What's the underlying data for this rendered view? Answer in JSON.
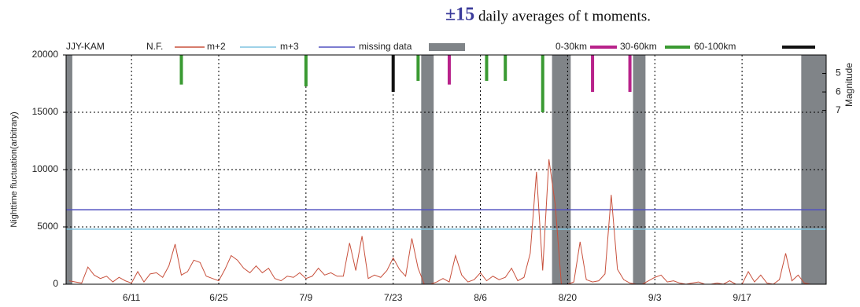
{
  "header": {
    "mark": "±15",
    "text": "daily averages of t moments."
  },
  "chart_data": {
    "type": "line",
    "station": "JJY-KAM",
    "ylabel": "Nighttime fluctuation(arbitrary)",
    "y2label": "Magnitude",
    "categories": [
      null,
      null,
      null,
      null,
      null,
      null,
      null,
      null,
      null,
      null,
      "6/11",
      null,
      null,
      null,
      null,
      null,
      null,
      null,
      null,
      null,
      null,
      null,
      null,
      null,
      "6/25",
      null,
      null,
      null,
      null,
      null,
      null,
      null,
      null,
      null,
      null,
      null,
      null,
      null,
      "7/9",
      null,
      null,
      null,
      null,
      null,
      null,
      null,
      null,
      null,
      null,
      null,
      null,
      null,
      "7/23",
      null,
      null,
      null,
      null,
      null,
      null,
      null,
      null,
      null,
      null,
      null,
      null,
      null,
      "8/6",
      null,
      null,
      null,
      null,
      null,
      null,
      null,
      null,
      null,
      null,
      null,
      null,
      null,
      "8/20",
      null,
      null,
      null,
      null,
      null,
      null,
      null,
      null,
      null,
      null,
      null,
      null,
      null,
      "9/3",
      null,
      null,
      null,
      null,
      null,
      null,
      null,
      null,
      null,
      null,
      null,
      null,
      null,
      "9/17",
      null,
      null,
      null,
      null,
      null,
      null,
      null,
      null,
      null,
      null,
      null,
      null,
      null
    ],
    "series": [
      {
        "name": "N.F.",
        "color": "#c8503c",
        "values": [
          300,
          200,
          100,
          1500,
          800,
          500,
          700,
          200,
          600,
          300,
          100,
          1100,
          200,
          900,
          1000,
          600,
          1600,
          3500,
          800,
          1100,
          2100,
          1900,
          700,
          500,
          300,
          1300,
          2500,
          2100,
          1400,
          1000,
          1600,
          1000,
          1400,
          500,
          300,
          700,
          600,
          1000,
          500,
          700,
          1400,
          800,
          1000,
          700,
          700,
          3600,
          1200,
          4200,
          500,
          800,
          600,
          1200,
          2300,
          1300,
          700,
          4000,
          1400,
          0,
          0,
          200,
          500,
          200,
          2500,
          800,
          200,
          400,
          1000,
          300,
          700,
          400,
          600,
          1400,
          300,
          600,
          2700,
          9800,
          1200,
          10900,
          7000,
          0,
          0,
          200,
          3700,
          400,
          200,
          300,
          900,
          7800,
          1300,
          400,
          100,
          0,
          0,
          300,
          600,
          800,
          200,
          300,
          100,
          0,
          100,
          200,
          0,
          0,
          100,
          0,
          300,
          0,
          0,
          1100,
          200,
          800,
          100,
          0,
          400,
          2700,
          300,
          800,
          100,
          0,
          0,
          0
        ]
      }
    ],
    "reference_lines": [
      {
        "name": "m+2",
        "color": "#7ec3e0",
        "value": 4800
      },
      {
        "name": "m+3",
        "color": "#5050c0",
        "value": 6500
      }
    ],
    "missing_data": {
      "name": "missing data",
      "color": "#808488",
      "ranges": [
        [
          0,
          0
        ],
        [
          57,
          58
        ],
        [
          78,
          80
        ],
        [
          91,
          92
        ],
        [
          118,
          121
        ]
      ]
    },
    "earthquakes": [
      {
        "name": "0-30km",
        "color": "#b8228a",
        "x": [
          61,
          84,
          90
        ],
        "values": [
          5.6,
          6.0,
          6.0
        ]
      },
      {
        "name": "30-60km",
        "color": "#3a9a32",
        "x": [
          18,
          38,
          56,
          67,
          70,
          76
        ],
        "values": [
          5.6,
          5.7,
          5.4,
          5.4,
          5.4,
          7.1
        ]
      },
      {
        "name": "60-100km",
        "color": "#111111",
        "x": [
          52
        ],
        "values": [
          6.0
        ]
      }
    ],
    "ylim": [
      0,
      20000
    ],
    "yticks": [
      0,
      5000,
      10000,
      15000,
      20000
    ],
    "y2lim": [
      16.4,
      4
    ],
    "y2ticks": [
      5,
      6,
      7
    ],
    "grid": true
  }
}
